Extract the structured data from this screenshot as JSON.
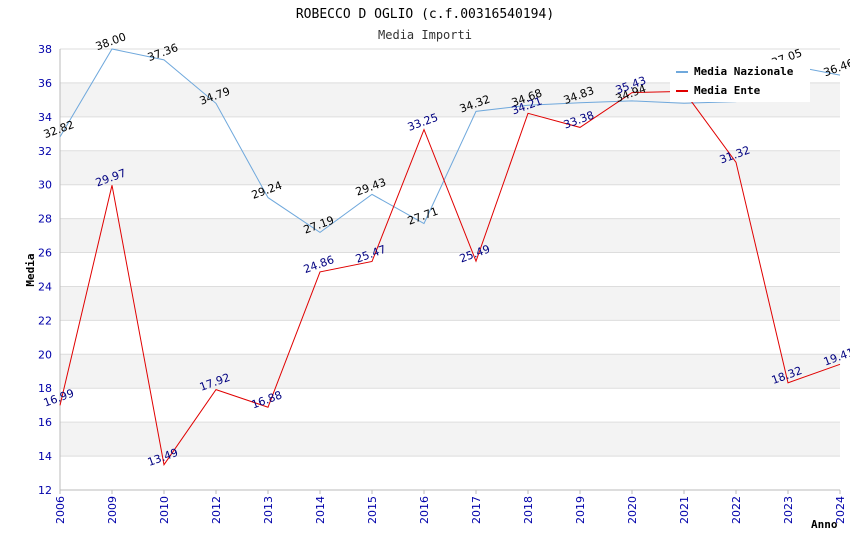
{
  "chart_data": {
    "type": "line",
    "title": "ROBECCO D OGLIO (c.f.00316540194)",
    "subtitle": "Media Importi",
    "xlabel": "Anno",
    "ylabel": "Media",
    "ylim": [
      12,
      38
    ],
    "yticks": [
      "12",
      "14",
      "16",
      "18",
      "20",
      "22",
      "24",
      "26",
      "28",
      "30",
      "32",
      "34",
      "36",
      "38"
    ],
    "categories": [
      "2006",
      "2009",
      "2010",
      "2012",
      "2013",
      "2014",
      "2015",
      "2016",
      "2017",
      "2018",
      "2019",
      "2020",
      "2021",
      "2022",
      "2023",
      "2024"
    ],
    "legend_position": "top-right",
    "grid": true,
    "series": [
      {
        "name": "Media Nazionale",
        "color": "#6fa8dc",
        "values": [
          32.82,
          38.0,
          37.36,
          34.79,
          29.24,
          27.19,
          29.43,
          27.71,
          34.32,
          34.68,
          34.83,
          34.94,
          34.8,
          34.9,
          37.05,
          36.46
        ],
        "labels": [
          "32.82",
          "38.00",
          "37.36",
          "34.79",
          "29.24",
          "27.19",
          "29.43",
          "27.71",
          "34.32",
          "34.68",
          "34.83",
          "34.94",
          "",
          "",
          "37.05",
          "36.46"
        ]
      },
      {
        "name": "Media Ente",
        "color": "#e00000",
        "values": [
          16.99,
          29.97,
          13.49,
          17.92,
          16.88,
          24.86,
          25.47,
          33.25,
          25.49,
          34.21,
          33.38,
          35.43,
          35.5,
          31.32,
          18.32,
          19.41
        ],
        "labels": [
          "16.99",
          "29.97",
          "13.49",
          "17.92",
          "16.88",
          "24.86",
          "25.47",
          "33.25",
          "25.49",
          "34.21",
          "33.38",
          "35.43",
          "",
          "31.32",
          "18.32",
          "19.41"
        ]
      }
    ]
  }
}
